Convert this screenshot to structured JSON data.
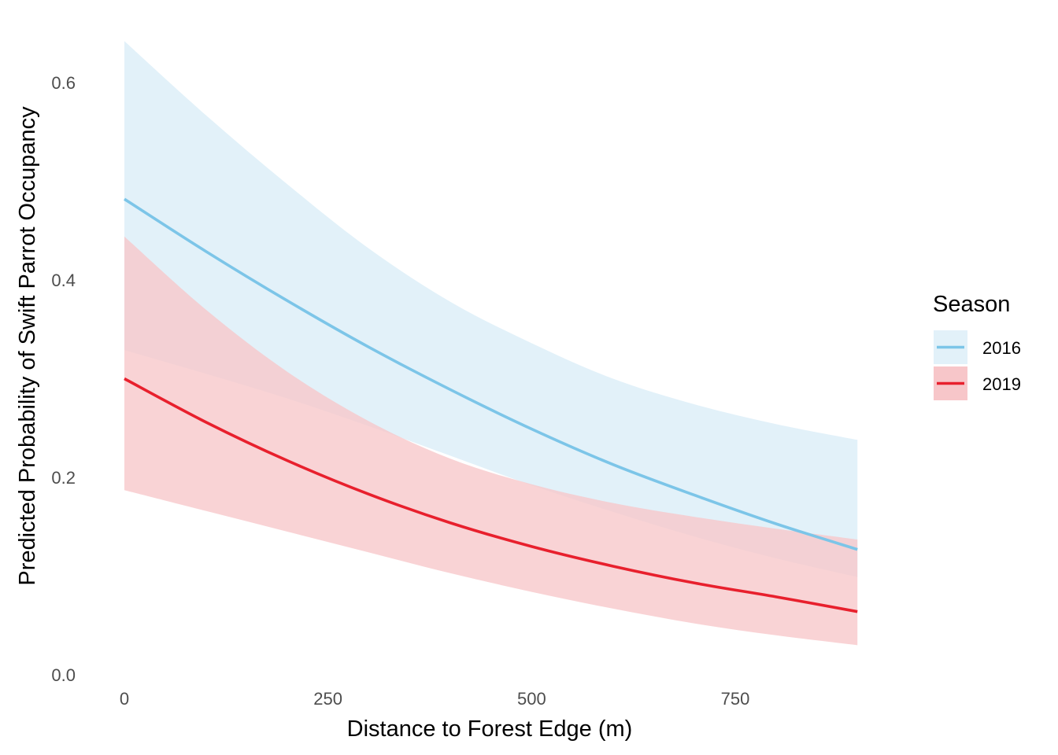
{
  "chart_data": {
    "type": "line",
    "xlabel": "Distance to Forest Edge (m)",
    "ylabel": "Predicted Probability of Swift Parrot Occupancy",
    "xlim": [
      0,
      900
    ],
    "ylim": [
      0,
      0.64
    ],
    "xticks": [
      0,
      250,
      500,
      750
    ],
    "xtick_labels": [
      "0",
      "250",
      "500",
      "750"
    ],
    "yticks": [
      0,
      0.2,
      0.4,
      0.6
    ],
    "ytick_labels": [
      "0.0",
      "0.2",
      "0.4",
      "0.6"
    ],
    "grid": false,
    "legend": {
      "title": "Season",
      "position": "right"
    },
    "x": [
      0,
      100,
      200,
      300,
      400,
      500,
      600,
      700,
      800,
      900
    ],
    "series": [
      {
        "name": "2016",
        "color": "#7cc5e8",
        "ribbon_color": "#e2f1f9",
        "values": [
          0.482,
          0.429,
          0.379,
          0.332,
          0.289,
          0.249,
          0.213,
          0.182,
          0.153,
          0.127
        ],
        "lower": [
          0.329,
          0.305,
          0.28,
          0.252,
          0.222,
          0.192,
          0.165,
          0.14,
          0.118,
          0.099
        ],
        "upper": [
          0.642,
          0.567,
          0.497,
          0.432,
          0.378,
          0.336,
          0.3,
          0.274,
          0.254,
          0.238
        ]
      },
      {
        "name": "2019",
        "color": "#e8202d",
        "ribbon_color": "#f7c6c9",
        "values": [
          0.3,
          0.256,
          0.217,
          0.183,
          0.154,
          0.13,
          0.11,
          0.093,
          0.079,
          0.064
        ],
        "lower": [
          0.187,
          0.166,
          0.145,
          0.124,
          0.103,
          0.084,
          0.067,
          0.052,
          0.04,
          0.03
        ],
        "upper": [
          0.444,
          0.37,
          0.307,
          0.257,
          0.219,
          0.193,
          0.174,
          0.16,
          0.148,
          0.137
        ]
      }
    ]
  }
}
